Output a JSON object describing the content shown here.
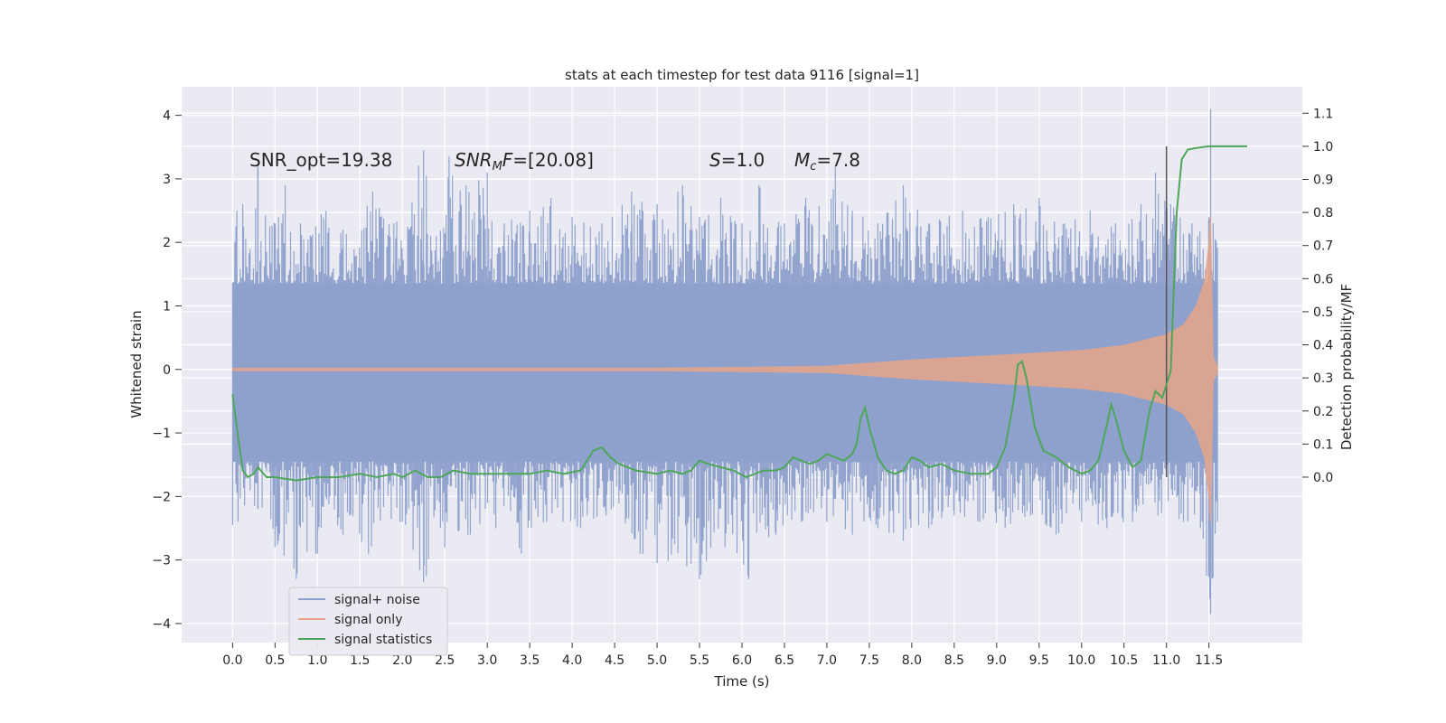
{
  "chart_data": {
    "type": "line",
    "title": "stats at each timestep for test data 9116 [signal=1]",
    "xlabel": "Time (s)",
    "ylabel": "Whitened strain",
    "ylabel_right": "Detection probability/MF",
    "xlim": [
      -0.6,
      12.6
    ],
    "ylim": [
      -4.3,
      4.45
    ],
    "ylim_right": [
      -0.5,
      1.18
    ],
    "x_ticks": [
      "0.0",
      "0.5",
      "1.0",
      "1.5",
      "2.0",
      "2.5",
      "3.0",
      "3.5",
      "4.0",
      "4.5",
      "5.0",
      "5.5",
      "6.0",
      "6.5",
      "7.0",
      "7.5",
      "8.0",
      "8.5",
      "9.0",
      "9.5",
      "10.0",
      "10.5",
      "11.0",
      "11.5"
    ],
    "y_ticks": [
      "4",
      "3",
      "2",
      "1",
      "0",
      "−1",
      "−2",
      "−3",
      "−4"
    ],
    "y_ticks_right": [
      "1.1",
      "1.0",
      "0.9",
      "0.8",
      "0.7",
      "0.6",
      "0.5",
      "0.4",
      "0.3",
      "0.2",
      "0.1",
      "0.0"
    ],
    "annotations": {
      "snr_opt": "SNR_opt=19.38",
      "snr_mf_sym": "SNR",
      "snr_mf_sub": "M",
      "snr_mf_tail": "F=[20.08]",
      "s_sym": "S",
      "s_value": "=1.0",
      "mc_sym": "M",
      "mc_sub": "c",
      "mc_value": "=7.8"
    },
    "legend": {
      "position": "lower-left",
      "entries": [
        {
          "label": "signal+ noise",
          "color": "#8da0cb"
        },
        {
          "label": "signal only",
          "color": "#e8a58a"
        },
        {
          "label": "signal statistics",
          "color": "#4fa65a"
        }
      ]
    },
    "vertical_marker_x": 11.0,
    "series": [
      {
        "name": "signal+ noise",
        "color": "#8da0cb",
        "x_range": [
          0.0,
          11.6
        ],
        "core_band": [
          -1.45,
          1.35
        ],
        "peaks_positive": [
          [
            0.05,
            2.5
          ],
          [
            0.12,
            2.6
          ],
          [
            0.3,
            3.25
          ],
          [
            0.5,
            2.3
          ],
          [
            0.62,
            2.9
          ],
          [
            0.8,
            2.3
          ],
          [
            1.1,
            2.5
          ],
          [
            1.3,
            2.2
          ],
          [
            1.65,
            2.8
          ],
          [
            1.9,
            2.3
          ],
          [
            2.25,
            3.45
          ],
          [
            2.4,
            2.1
          ],
          [
            2.55,
            3.35
          ],
          [
            2.75,
            2.9
          ],
          [
            3.0,
            3.1
          ],
          [
            3.2,
            2.3
          ],
          [
            3.5,
            2.5
          ],
          [
            3.75,
            2.7
          ],
          [
            4.0,
            2.4
          ],
          [
            4.35,
            2.3
          ],
          [
            4.7,
            2.8
          ],
          [
            5.0,
            2.6
          ],
          [
            5.3,
            2.9
          ],
          [
            5.5,
            2.4
          ],
          [
            5.75,
            2.7
          ],
          [
            6.0,
            2.3
          ],
          [
            6.2,
            2.9
          ],
          [
            6.5,
            2.3
          ],
          [
            6.75,
            2.7
          ],
          [
            7.1,
            3.2
          ],
          [
            7.3,
            2.5
          ],
          [
            7.6,
            2.3
          ],
          [
            7.9,
            2.9
          ],
          [
            8.2,
            2.3
          ],
          [
            8.6,
            2.5
          ],
          [
            8.9,
            2.4
          ],
          [
            9.2,
            2.6
          ],
          [
            9.5,
            2.7
          ],
          [
            9.8,
            2.3
          ],
          [
            10.1,
            2.5
          ],
          [
            10.4,
            2.3
          ],
          [
            10.7,
            2.6
          ],
          [
            10.87,
            3.1
          ],
          [
            11.05,
            2.6
          ],
          [
            11.3,
            2.3
          ],
          [
            11.5,
            2.4
          ],
          [
            11.55,
            2.3
          ]
        ],
        "peaks_negative": [
          [
            0.0,
            -2.45
          ],
          [
            0.3,
            -2.2
          ],
          [
            0.5,
            -2.8
          ],
          [
            0.75,
            -3.3
          ],
          [
            1.0,
            -2.9
          ],
          [
            1.3,
            -2.6
          ],
          [
            1.6,
            -2.9
          ],
          [
            2.0,
            -2.4
          ],
          [
            2.25,
            -3.35
          ],
          [
            2.5,
            -2.8
          ],
          [
            2.8,
            -2.6
          ],
          [
            3.1,
            -2.5
          ],
          [
            3.4,
            -2.9
          ],
          [
            3.7,
            -2.4
          ],
          [
            4.1,
            -2.5
          ],
          [
            4.4,
            -2.3
          ],
          [
            4.8,
            -2.9
          ],
          [
            5.0,
            -3.05
          ],
          [
            5.35,
            -3.1
          ],
          [
            5.5,
            -3.3
          ],
          [
            5.8,
            -2.8
          ],
          [
            6.08,
            -3.3
          ],
          [
            6.4,
            -2.6
          ],
          [
            6.7,
            -2.4
          ],
          [
            7.0,
            -2.4
          ],
          [
            7.3,
            -2.6
          ],
          [
            7.6,
            -2.5
          ],
          [
            7.9,
            -2.7
          ],
          [
            8.2,
            -2.5
          ],
          [
            8.5,
            -2.3
          ],
          [
            8.8,
            -2.4
          ],
          [
            9.1,
            -2.5
          ],
          [
            9.4,
            -2.3
          ],
          [
            9.7,
            -2.6
          ],
          [
            10.0,
            -2.4
          ],
          [
            10.3,
            -2.5
          ],
          [
            10.6,
            -2.4
          ],
          [
            10.9,
            -2.3
          ],
          [
            11.2,
            -2.4
          ],
          [
            11.4,
            -2.5
          ],
          [
            11.52,
            -3.85
          ],
          [
            11.6,
            -2.4
          ]
        ],
        "spikes_positive": [
          [
            11.52,
            4.1
          ]
        ]
      },
      {
        "name": "signal only",
        "color": "#e8a58a",
        "envelope": [
          [
            0.0,
            0.02
          ],
          [
            5.0,
            0.02
          ],
          [
            7.0,
            0.05
          ],
          [
            8.0,
            0.15
          ],
          [
            9.0,
            0.22
          ],
          [
            9.5,
            0.26
          ],
          [
            10.0,
            0.3
          ],
          [
            10.5,
            0.38
          ],
          [
            11.0,
            0.55
          ],
          [
            11.2,
            0.7
          ],
          [
            11.35,
            1.0
          ],
          [
            11.45,
            1.4
          ],
          [
            11.5,
            2.0
          ],
          [
            11.52,
            2.4
          ],
          [
            11.55,
            0.2
          ],
          [
            11.6,
            0.05
          ]
        ]
      },
      {
        "name": "signal statistics",
        "color": "#4fa65a",
        "points": [
          [
            0.0,
            0.25
          ],
          [
            0.05,
            0.15
          ],
          [
            0.12,
            0.02
          ],
          [
            0.18,
            0.0
          ],
          [
            0.25,
            0.01
          ],
          [
            0.3,
            0.03
          ],
          [
            0.4,
            0.0
          ],
          [
            0.5,
            0.0
          ],
          [
            0.75,
            -0.01
          ],
          [
            1.0,
            0.0
          ],
          [
            1.25,
            0.0
          ],
          [
            1.5,
            0.01
          ],
          [
            1.7,
            0.0
          ],
          [
            1.9,
            0.01
          ],
          [
            2.0,
            0.0
          ],
          [
            2.15,
            0.02
          ],
          [
            2.3,
            0.0
          ],
          [
            2.45,
            0.0
          ],
          [
            2.6,
            0.02
          ],
          [
            2.8,
            0.01
          ],
          [
            3.0,
            0.01
          ],
          [
            3.25,
            0.01
          ],
          [
            3.5,
            0.01
          ],
          [
            3.7,
            0.02
          ],
          [
            3.9,
            0.01
          ],
          [
            4.1,
            0.02
          ],
          [
            4.25,
            0.08
          ],
          [
            4.35,
            0.09
          ],
          [
            4.45,
            0.06
          ],
          [
            4.55,
            0.04
          ],
          [
            4.75,
            0.02
          ],
          [
            5.0,
            0.01
          ],
          [
            5.15,
            0.02
          ],
          [
            5.3,
            0.01
          ],
          [
            5.4,
            0.02
          ],
          [
            5.5,
            0.05
          ],
          [
            5.6,
            0.04
          ],
          [
            5.75,
            0.03
          ],
          [
            5.9,
            0.02
          ],
          [
            6.05,
            0.0
          ],
          [
            6.25,
            0.02
          ],
          [
            6.4,
            0.02
          ],
          [
            6.5,
            0.03
          ],
          [
            6.6,
            0.06
          ],
          [
            6.7,
            0.05
          ],
          [
            6.8,
            0.04
          ],
          [
            6.9,
            0.05
          ],
          [
            7.0,
            0.07
          ],
          [
            7.1,
            0.06
          ],
          [
            7.2,
            0.05
          ],
          [
            7.3,
            0.07
          ],
          [
            7.35,
            0.1
          ],
          [
            7.4,
            0.18
          ],
          [
            7.45,
            0.21
          ],
          [
            7.5,
            0.15
          ],
          [
            7.6,
            0.06
          ],
          [
            7.7,
            0.02
          ],
          [
            7.8,
            0.01
          ],
          [
            7.9,
            0.02
          ],
          [
            8.0,
            0.06
          ],
          [
            8.1,
            0.05
          ],
          [
            8.2,
            0.03
          ],
          [
            8.35,
            0.04
          ],
          [
            8.5,
            0.02
          ],
          [
            8.7,
            0.01
          ],
          [
            8.9,
            0.01
          ],
          [
            9.0,
            0.03
          ],
          [
            9.1,
            0.09
          ],
          [
            9.2,
            0.23
          ],
          [
            9.25,
            0.34
          ],
          [
            9.3,
            0.35
          ],
          [
            9.35,
            0.3
          ],
          [
            9.45,
            0.15
          ],
          [
            9.55,
            0.08
          ],
          [
            9.7,
            0.06
          ],
          [
            9.85,
            0.03
          ],
          [
            10.0,
            0.01
          ],
          [
            10.1,
            0.02
          ],
          [
            10.2,
            0.05
          ],
          [
            10.3,
            0.16
          ],
          [
            10.35,
            0.22
          ],
          [
            10.4,
            0.18
          ],
          [
            10.5,
            0.08
          ],
          [
            10.6,
            0.03
          ],
          [
            10.7,
            0.05
          ],
          [
            10.8,
            0.2
          ],
          [
            10.87,
            0.26
          ],
          [
            10.95,
            0.24
          ],
          [
            11.05,
            0.32
          ],
          [
            11.12,
            0.8
          ],
          [
            11.18,
            0.96
          ],
          [
            11.25,
            0.99
          ],
          [
            11.35,
            0.995
          ],
          [
            11.5,
            1.0
          ],
          [
            11.7,
            1.0
          ],
          [
            11.95,
            1.0
          ]
        ]
      }
    ]
  }
}
